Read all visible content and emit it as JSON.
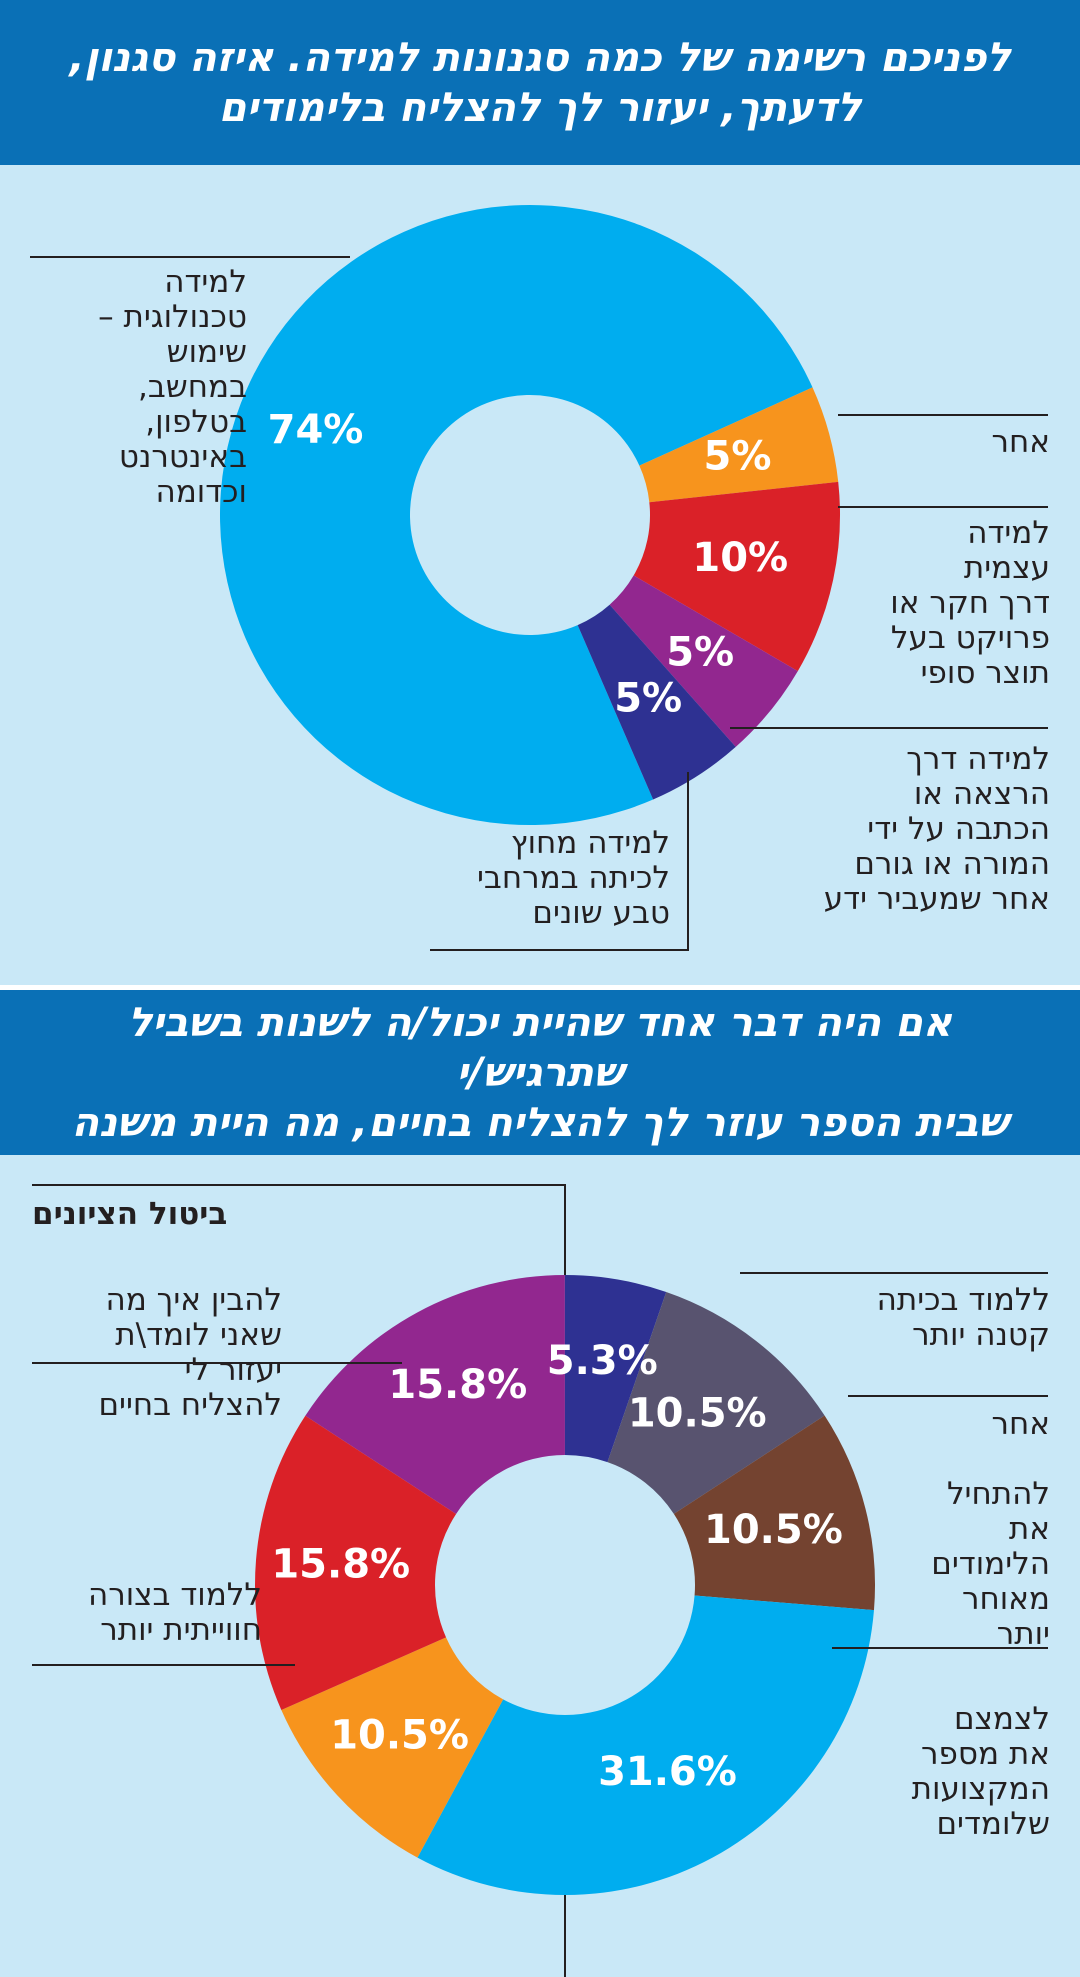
{
  "colors": {
    "header_bg": "#0a70b6",
    "panel_bg": "#c9e8f7",
    "light_blue": "#00adef",
    "orange": "#f7941d",
    "red": "#da2128",
    "purple": "#92278f",
    "navy": "#2e3192",
    "gray": "#58536f",
    "brown": "#744330"
  },
  "section1": {
    "title_line1": "לפניכם רשימה של כמה סגנונות למידה. איזה סגנון,",
    "title_line2": "לדעתך, יעזור לך להצליח בלימודים",
    "labels": {
      "tech": [
        "למידה",
        "טכנולוגית –",
        "שימוש",
        "במחשב,",
        "בטלפון,",
        "באינטרנט",
        "וכדומה"
      ],
      "other": [
        "אחר"
      ],
      "self": [
        "למידה",
        "עצמית",
        "דרך חקר או",
        "פרויקט בעל",
        "תוצר סופי"
      ],
      "lecture": [
        "למידה דרך",
        "הרצאה או",
        "הכתבה על ידי",
        "המורה או גורם",
        "אחר שמעביר ידע"
      ],
      "outside": [
        "למידה מחוץ",
        "לכיתה במרחבי",
        "טבע שונים"
      ]
    }
  },
  "section2": {
    "title_line1": "אם היה דבר אחד שהיית יכול/ה לשנות בשביל שתרגיש/י",
    "title_line2": "שבית הספר עוזר לך להצליח בחיים, מה היית משנה",
    "labels": {
      "grades": [
        "ביטול הציונים"
      ],
      "understand": [
        "להבין איך מה",
        "שאני לומד\\ת",
        "יעזור לי",
        "להצליח בחיים"
      ],
      "experiential": [
        "ללמוד בצורה",
        "חווייתית יותר"
      ],
      "smallclass": [
        "ללמוד בכיתה",
        "קטנה יותר"
      ],
      "other": [
        "אחר"
      ],
      "later": [
        "להתחיל",
        "את",
        "הלימודים",
        "מאוחר",
        "יותר"
      ],
      "reduce": [
        "לצמצם",
        "את מספר",
        "המקצועות",
        "שלומדים"
      ]
    }
  },
  "chart_data": [
    {
      "type": "pie",
      "variant": "donut",
      "categories": [
        "למידה טכנולוגית – שימוש במחשב, בטלפון, באינטרנט וכדומה",
        "אחר",
        "למידה עצמית דרך חקר או פרויקט בעל תוצר סופי",
        "למידה דרך הרצאה או הכתבה על ידי המורה או גורם אחר שמעביר ידע",
        "למידה מחוץ לכיתה במרחבי טבע שונים"
      ],
      "values": [
        74,
        5,
        10,
        5,
        5
      ],
      "value_labels": [
        "74%",
        "5%",
        "10%",
        "5%",
        "5%"
      ],
      "colors": [
        "#00adef",
        "#f7941d",
        "#da2128",
        "#92278f",
        "#2e3192"
      ]
    },
    {
      "type": "pie",
      "variant": "donut",
      "categories": [
        "ביטול הציונים",
        "ללמוד בכיתה קטנה יותר",
        "אחר",
        "להתחיל את הלימודים מאוחר יותר",
        "לצמצם את מספר המקצועות שלומדים",
        "ללמוד בצורה חווייתית יותר",
        "להבין איך מה שאני לומד\\ת יעזור לי להצליח בחיים"
      ],
      "values": [
        15.8,
        5.3,
        10.5,
        10.5,
        31.6,
        10.5,
        15.8
      ],
      "value_labels": [
        "15.8%",
        "5.3%",
        "10.5%",
        "10.5%",
        "31.6%",
        "10.5%",
        "15.8%"
      ],
      "colors": [
        "#92278f",
        "#2e3192",
        "#58536f",
        "#744330",
        "#00adef",
        "#f7941d",
        "#da2128"
      ]
    }
  ]
}
